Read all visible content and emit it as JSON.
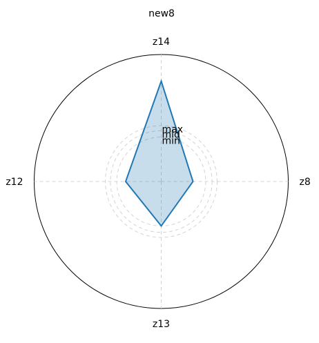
{
  "chart_data": {
    "type": "radar",
    "title": "new8",
    "axes": [
      "z14",
      "z8",
      "z13",
      "z12"
    ],
    "values": [
      0.79,
      0.25,
      0.35,
      0.28
    ],
    "rmax": 1.0,
    "rings": [
      {
        "label": "min",
        "value": 0.35
      },
      {
        "label": "mid",
        "value": 0.4
      },
      {
        "label": "max",
        "value": 0.44
      }
    ],
    "grid": true,
    "colors": {
      "series_line": "#1f77b4",
      "series_fill": "#1f77b4",
      "grid": "#d3d3d3",
      "outline": "#000000"
    }
  }
}
